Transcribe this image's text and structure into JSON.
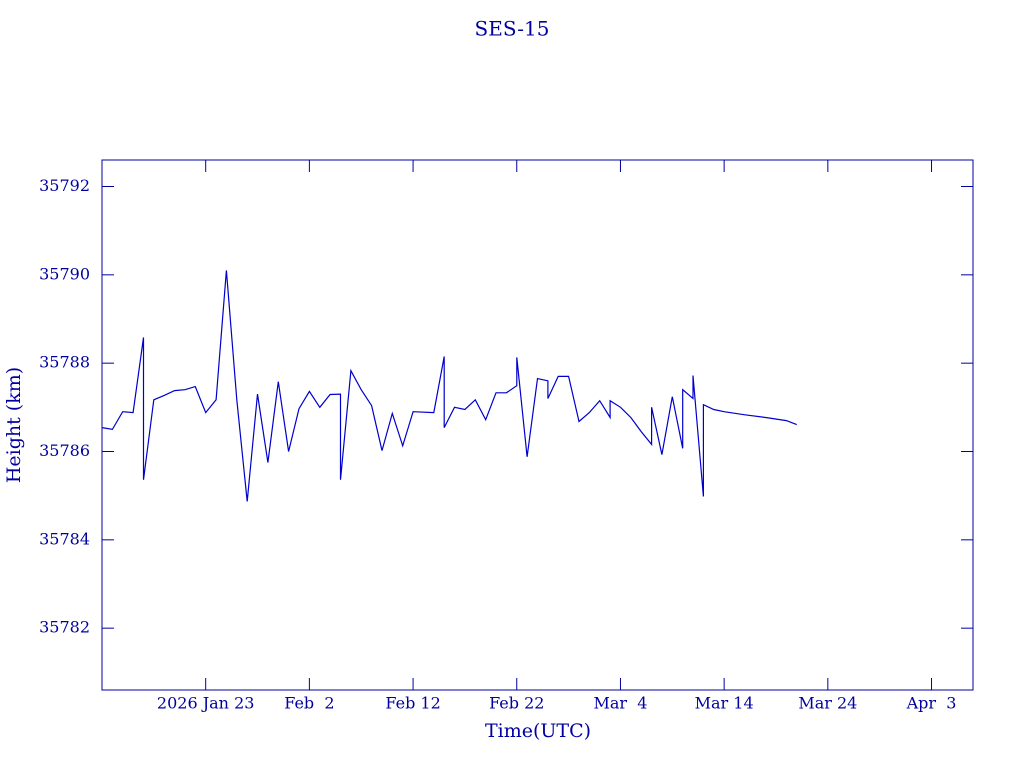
{
  "chart_data": {
    "type": "line",
    "title": "SES-15",
    "x_label": "Time(UTC)",
    "y_label": "Height (km)",
    "color": "#0000cc",
    "x": [
      "2026-01-13",
      "2026-01-14",
      "2026-01-15",
      "2026-01-16",
      "2026-01-17",
      "2026-01-17",
      "2026-01-18",
      "2026-01-19",
      "2026-01-20",
      "2026-01-21",
      "2026-01-22",
      "2026-01-23",
      "2026-01-24",
      "2026-01-25",
      "2026-01-26",
      "2026-01-27",
      "2026-01-28",
      "2026-01-29",
      "2026-01-30",
      "2026-01-31",
      "2026-02-01",
      "2026-02-02",
      "2026-02-03",
      "2026-02-04",
      "2026-02-05",
      "2026-02-05",
      "2026-02-06",
      "2026-02-07",
      "2026-02-08",
      "2026-02-09",
      "2026-02-10",
      "2026-02-11",
      "2026-02-12",
      "2026-02-14",
      "2026-02-15",
      "2026-02-15",
      "2026-02-16",
      "2026-02-17",
      "2026-02-18",
      "2026-02-19",
      "2026-02-20",
      "2026-02-21",
      "2026-02-22",
      "2026-02-22",
      "2026-02-23",
      "2026-02-24",
      "2026-02-25",
      "2026-02-25",
      "2026-02-26",
      "2026-02-27",
      "2026-02-28",
      "2026-03-01",
      "2026-03-02",
      "2026-03-03",
      "2026-03-03",
      "2026-03-04",
      "2026-03-05",
      "2026-03-06",
      "2026-03-07",
      "2026-03-07",
      "2026-03-08",
      "2026-03-09",
      "2026-03-10",
      "2026-03-10",
      "2026-03-11",
      "2026-03-11",
      "2026-03-12",
      "2026-03-12",
      "2026-03-13",
      "2026-03-14",
      "2026-03-16",
      "2026-03-18",
      "2026-03-20",
      "2026-03-21"
    ],
    "values": [
      35786.54,
      35786.5,
      35786.9,
      35786.88,
      35788.58,
      35785.36,
      35787.17,
      35787.27,
      35787.38,
      35787.4,
      35787.47,
      35786.88,
      35787.17,
      35790.1,
      35787.17,
      35784.87,
      35787.3,
      35785.75,
      35787.58,
      35786.0,
      35786.97,
      35787.36,
      35787.0,
      35787.29,
      35787.3,
      35785.36,
      35787.83,
      35787.4,
      35787.04,
      35786.02,
      35786.86,
      35786.13,
      35786.9,
      35786.88,
      35788.15,
      35786.54,
      35787.0,
      35786.95,
      35787.17,
      35786.72,
      35787.33,
      35787.33,
      35787.49,
      35788.13,
      35785.88,
      35787.65,
      35787.6,
      35787.2,
      35787.7,
      35787.7,
      35786.68,
      35786.88,
      35787.15,
      35786.77,
      35787.15,
      35787.0,
      35786.77,
      35786.45,
      35786.16,
      35787.0,
      35785.93,
      35787.24,
      35786.07,
      35787.4,
      35787.2,
      35787.72,
      35784.98,
      35787.06,
      35786.95,
      35786.9,
      35786.83,
      35786.77,
      35786.7,
      35786.61
    ],
    "xlim": [
      "2026-01-13",
      "2026-04-07"
    ],
    "xticks": [
      {
        "value": "2026-01-23",
        "label": "2026 Jan 23"
      },
      {
        "value": "2026-02-02",
        "label": "Feb  2"
      },
      {
        "value": "2026-02-12",
        "label": "Feb 12"
      },
      {
        "value": "2026-02-22",
        "label": "Feb 22"
      },
      {
        "value": "2026-03-04",
        "label": "Mar  4"
      },
      {
        "value": "2026-03-14",
        "label": "Mar 14"
      },
      {
        "value": "2026-03-24",
        "label": "Mar 24"
      },
      {
        "value": "2026-04-03",
        "label": "Apr  3"
      }
    ],
    "ylim": [
      35780.6,
      35792.6
    ],
    "yticks": [
      35782,
      35784,
      35786,
      35788,
      35790,
      35792
    ]
  }
}
